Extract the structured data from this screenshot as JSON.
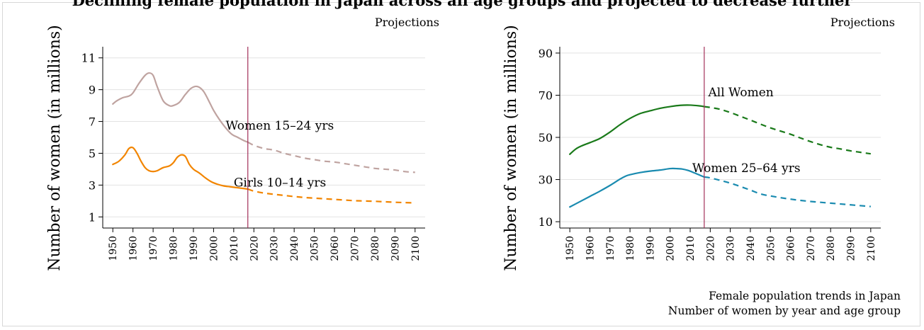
{
  "banner_title": "Declining female population in Japan across all age groups and projected to decrease further",
  "caption": {
    "line1": "Female population trends in Japan",
    "line2": "Number of women by year and age group"
  },
  "chart_data": [
    {
      "type": "line",
      "ylabel": "Number of women (in millions)",
      "projection_label": "Projections",
      "projection_start_year": 2017,
      "ylim": [
        0.3,
        11.7
      ],
      "yticks": [
        1,
        3,
        5,
        7,
        9,
        11
      ],
      "xlim": [
        1945,
        2105
      ],
      "xticks": [
        1950,
        1960,
        1970,
        1980,
        1990,
        2000,
        2010,
        2020,
        2030,
        2040,
        2050,
        2060,
        2070,
        2080,
        2090,
        2100
      ],
      "grid": true,
      "series": [
        {
          "name": "Women 15–24 yrs",
          "color": "#bfa3a0",
          "label_at": [
            2006,
            6.5
          ],
          "x": [
            1950,
            1952,
            1955,
            1958,
            1960,
            1963,
            1966,
            1968,
            1970,
            1972,
            1975,
            1978,
            1980,
            1983,
            1986,
            1989,
            1992,
            1995,
            1998,
            2000,
            2003,
            2006,
            2009,
            2012,
            2015,
            2017,
            2020,
            2025,
            2030,
            2035,
            2040,
            2045,
            2050,
            2055,
            2060,
            2065,
            2070,
            2075,
            2080,
            2085,
            2090,
            2095,
            2100
          ],
          "y": [
            8.1,
            8.3,
            8.5,
            8.6,
            8.8,
            9.4,
            9.9,
            10.05,
            9.9,
            9.2,
            8.3,
            8.0,
            8.0,
            8.2,
            8.7,
            9.1,
            9.2,
            8.9,
            8.2,
            7.7,
            7.1,
            6.6,
            6.2,
            6.0,
            5.8,
            5.7,
            5.5,
            5.3,
            5.2,
            5.0,
            4.85,
            4.7,
            4.6,
            4.5,
            4.45,
            4.35,
            4.25,
            4.15,
            4.05,
            4.0,
            3.95,
            3.85,
            3.8
          ]
        },
        {
          "name": "Girls 10–14 yrs",
          "color": "#f28500",
          "label_at": [
            2010,
            2.9
          ],
          "x": [
            1950,
            1953,
            1956,
            1958,
            1960,
            1962,
            1964,
            1966,
            1968,
            1970,
            1972,
            1975,
            1978,
            1980,
            1982,
            1984,
            1986,
            1988,
            1990,
            1993,
            1996,
            1999,
            2002,
            2005,
            2008,
            2011,
            2014,
            2017,
            2020,
            2025,
            2030,
            2035,
            2040,
            2045,
            2050,
            2055,
            2060,
            2065,
            2070,
            2075,
            2080,
            2085,
            2090,
            2095,
            2100
          ],
          "y": [
            4.3,
            4.5,
            4.9,
            5.3,
            5.35,
            5.0,
            4.5,
            4.1,
            3.9,
            3.85,
            3.9,
            4.1,
            4.2,
            4.4,
            4.75,
            4.9,
            4.8,
            4.3,
            4.0,
            3.75,
            3.45,
            3.2,
            3.05,
            2.95,
            2.9,
            2.85,
            2.8,
            2.75,
            2.62,
            2.5,
            2.42,
            2.35,
            2.28,
            2.22,
            2.18,
            2.14,
            2.1,
            2.06,
            2.02,
            2.0,
            1.98,
            1.95,
            1.92,
            1.9,
            1.88
          ]
        }
      ]
    },
    {
      "type": "line",
      "ylabel": "Number of women (in millions)",
      "projection_label": "Projections",
      "projection_start_year": 2017,
      "ylim": [
        7,
        93
      ],
      "yticks": [
        10,
        30,
        50,
        70,
        90
      ],
      "xlim": [
        1945,
        2105
      ],
      "xticks": [
        1950,
        1960,
        1970,
        1980,
        1990,
        2000,
        2010,
        2020,
        2030,
        2040,
        2050,
        2060,
        2070,
        2080,
        2090,
        2100
      ],
      "grid": true,
      "series": [
        {
          "name": "All Women",
          "color": "#1a7a1a",
          "label_at": [
            2019,
            69.5
          ],
          "x": [
            1950,
            1953,
            1956,
            1960,
            1965,
            1970,
            1975,
            1980,
            1985,
            1990,
            1995,
            2000,
            2005,
            2010,
            2015,
            2017,
            2020,
            2025,
            2030,
            2035,
            2040,
            2045,
            2050,
            2055,
            2060,
            2065,
            2070,
            2075,
            2080,
            2085,
            2090,
            2095,
            2100
          ],
          "y": [
            42,
            44.5,
            46,
            47.5,
            49.5,
            52.5,
            56,
            59,
            61.3,
            62.6,
            63.8,
            64.6,
            65.2,
            65.3,
            64.9,
            64.6,
            64.2,
            63.3,
            61.8,
            60.0,
            58.2,
            56.3,
            54.5,
            53.0,
            51.5,
            49.7,
            48.0,
            46.5,
            45.3,
            44.5,
            43.6,
            42.9,
            42.2
          ]
        },
        {
          "name": "Women 25–64 yrs",
          "color": "#1a8bb0",
          "label_at": [
            2011,
            33.5
          ],
          "x": [
            1950,
            1955,
            1960,
            1965,
            1970,
            1975,
            1978,
            1980,
            1985,
            1990,
            1995,
            2000,
            2003,
            2006,
            2009,
            2012,
            2015,
            2017,
            2020,
            2025,
            2030,
            2035,
            2040,
            2045,
            2050,
            2055,
            2060,
            2065,
            2070,
            2075,
            2080,
            2085,
            2090,
            2095,
            2100
          ],
          "y": [
            17,
            19.5,
            22,
            24.5,
            27.2,
            30.2,
            31.7,
            32.3,
            33.3,
            34.0,
            34.5,
            35.2,
            35.2,
            35.0,
            34.3,
            33.2,
            32.0,
            31.2,
            30.8,
            29.6,
            28.3,
            26.7,
            25.0,
            23.2,
            22.2,
            21.4,
            20.7,
            20.1,
            19.6,
            19.2,
            18.8,
            18.4,
            18.0,
            17.6,
            17.2
          ]
        }
      ]
    }
  ]
}
